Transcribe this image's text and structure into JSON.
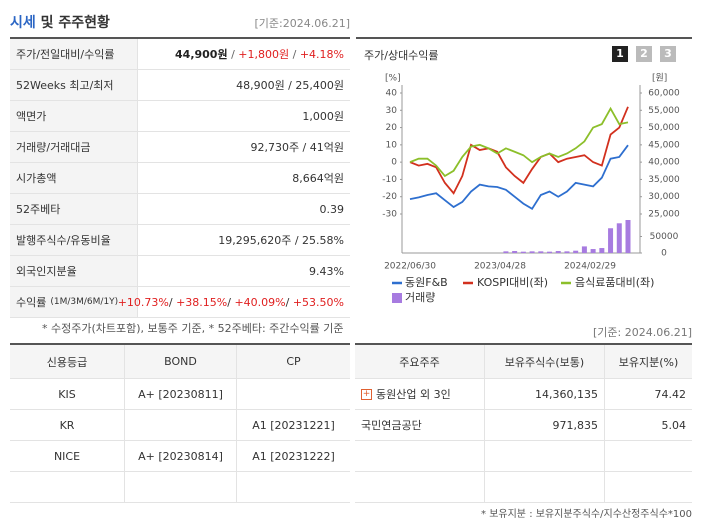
{
  "header": {
    "title_highlight": "시세",
    "title_rest": "및 주주현황",
    "date": "[기준:2024.06.21]"
  },
  "quote_rows": [
    {
      "label": [
        "주가/전일대비/수익률"
      ],
      "value": [
        {
          "text": "44,900원",
          "color": "#222",
          "bold": true
        },
        {
          "text": " / ",
          "color": "#666"
        },
        {
          "text": "+1,800원",
          "color": "#e02020"
        },
        {
          "text": " / ",
          "color": "#666"
        },
        {
          "text": "+4.18%",
          "color": "#e02020"
        }
      ]
    },
    {
      "label": [
        "52Weeks 최고/최저"
      ],
      "value": [
        {
          "text": "48,900원 / 25,400원",
          "color": "#333"
        }
      ]
    },
    {
      "label": [
        "액면가"
      ],
      "value": [
        {
          "text": "1,000원",
          "color": "#333"
        }
      ]
    },
    {
      "label": [
        "거래량/거래대금"
      ],
      "value": [
        {
          "text": "92,730주 / 41억원",
          "color": "#333"
        }
      ]
    },
    {
      "label": [
        "시가총액"
      ],
      "value": [
        {
          "text": "8,664억원",
          "color": "#333"
        }
      ]
    },
    {
      "label": [
        "52주베타"
      ],
      "value": [
        {
          "text": "0.39",
          "color": "#333"
        }
      ]
    },
    {
      "label": [
        "발행주식수/유동비율"
      ],
      "value": [
        {
          "text": "19,295,620주 / 25.58%",
          "color": "#333"
        }
      ]
    },
    {
      "label": [
        "외국인지분율"
      ],
      "value": [
        {
          "text": "9.43%",
          "color": "#333"
        }
      ]
    },
    {
      "label": [
        "수익률",
        "(1M/3M/6M/1Y)"
      ],
      "value": [
        {
          "text": "+10.73%",
          "color": "#e02020"
        },
        {
          "text": "/ ",
          "color": "#333"
        },
        {
          "text": "+38.15%",
          "color": "#e02020"
        },
        {
          "text": "/ ",
          "color": "#333"
        },
        {
          "text": "+40.09%",
          "color": "#e02020"
        },
        {
          "text": "/ ",
          "color": "#333"
        },
        {
          "text": "+53.50%",
          "color": "#e02020"
        }
      ]
    }
  ],
  "quote_note": "* 수정주가(차트포함), 보통주 기준, * 52주베타: 주간수익률 기준",
  "chart_panel": {
    "title": "주가/상대수익률",
    "buttons": [
      "1",
      "2",
      "3"
    ]
  },
  "chart_data": {
    "type": "line",
    "y_unit": "[%]",
    "y2_unit": "[원]",
    "x_labels": [
      "2022/06/30",
      "2023/04/28",
      "2024/02/29"
    ],
    "ylim": [
      -30,
      40
    ],
    "yticks": [
      40,
      30,
      20,
      10,
      0,
      -10,
      -20,
      -30
    ],
    "y2lim": [
      25000,
      60000
    ],
    "y2ticks": [
      {
        "value": 60000,
        "label": "60,000"
      },
      {
        "value": 55000,
        "label": "55,000"
      },
      {
        "value": 50000,
        "label": "50,000"
      },
      {
        "value": 45000,
        "label": "45,000"
      },
      {
        "value": 40000,
        "label": "40,000"
      },
      {
        "value": 35000,
        "label": "35,000"
      },
      {
        "value": 30000,
        "label": "30,000"
      },
      {
        "value": 25000,
        "label": "25,000"
      }
    ],
    "vlim": [
      0,
      100000
    ],
    "vticks": [
      50000,
      0
    ],
    "series": [
      {
        "name": "동원F&B",
        "color": "#2e6fcf",
        "axis": "y2",
        "values": [
          29300,
          29800,
          30500,
          31000,
          29000,
          27000,
          28500,
          31500,
          33500,
          33000,
          32800,
          32000,
          30000,
          28000,
          26500,
          30500,
          31500,
          30000,
          31500,
          34000,
          33500,
          33000,
          35500,
          41000,
          41500,
          44900
        ]
      },
      {
        "name": "KOSPI대비(좌)",
        "color": "#d2301e",
        "values": [
          0,
          -2,
          -1,
          -3,
          -12,
          -18,
          -8,
          10,
          7,
          8,
          6,
          -3,
          -8,
          -12,
          -4,
          3,
          5,
          0,
          2,
          3,
          4,
          0,
          -2,
          16,
          20,
          32
        ]
      },
      {
        "name": "음식료품대비(좌)",
        "color": "#8cbf2a",
        "values": [
          0,
          2,
          2,
          -2,
          -8,
          -5,
          3,
          9,
          10,
          8,
          5,
          8,
          6,
          4,
          0,
          3,
          5,
          3,
          5,
          8,
          12,
          20,
          22,
          31,
          22,
          23
        ]
      },
      {
        "name": "거래량",
        "color": "#a77be0",
        "axis": "volume",
        "values": [
          0,
          0,
          0,
          0,
          0,
          0,
          0,
          0,
          0,
          0,
          0,
          5000,
          6000,
          4000,
          5000,
          5000,
          4000,
          6000,
          5000,
          7000,
          20000,
          12000,
          15000,
          75000,
          90000,
          100000
        ]
      }
    ]
  },
  "rating_table": {
    "headers": [
      "신용등급",
      "BOND",
      "CP"
    ],
    "rows": [
      [
        "KIS",
        "A+ [20230811]",
        null
      ],
      [
        "KR",
        null,
        "A1 [20231221]"
      ],
      [
        "NICE",
        "A+ [20230814]",
        "A1 [20231222]"
      ],
      [
        null,
        null,
        null
      ]
    ]
  },
  "holder_date": "[기준: 2024.06.21]",
  "holder_table": {
    "headers": [
      "주요주주",
      "보유주식수(보통)",
      "보유지분(%)"
    ],
    "rows": [
      [
        "동원산업 외 3인",
        "14,360,135",
        "74.42"
      ],
      [
        "국민연금공단",
        "971,835",
        "5.04"
      ],
      [
        null,
        null,
        null
      ],
      [
        null,
        null,
        null
      ]
    ]
  },
  "holder_note": "* 보유지분 : 보유지분주식수/지수산정주식수*100"
}
